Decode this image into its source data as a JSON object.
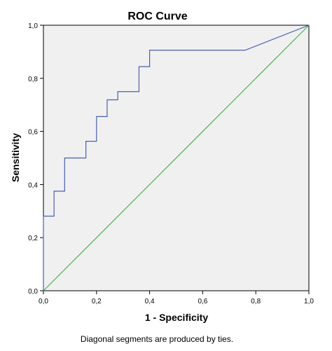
{
  "chart_data": {
    "type": "line",
    "title": "ROC Curve",
    "xlabel": "1 - Specificity",
    "ylabel": "Sensitivity",
    "footnote": "Diagonal segments are produced by ties.",
    "xlim": [
      0,
      1
    ],
    "ylim": [
      0,
      1
    ],
    "x_ticks": [
      "0,0",
      "0,2",
      "0,4",
      "0,6",
      "0,8",
      "1,0"
    ],
    "y_ticks": [
      "0,0",
      "0,2",
      "0,4",
      "0,6",
      "0,8",
      "1,0"
    ],
    "grid": false,
    "legend": "none",
    "series": [
      {
        "color": "#4a5fb0",
        "x": [
          0,
          0,
          0.04,
          0.04,
          0.08,
          0.08,
          0.16,
          0.16,
          0.2,
          0.2,
          0.24,
          0.24,
          0.28,
          0.28,
          0.36,
          0.36,
          0.4,
          0.4,
          0.76,
          1.0
        ],
        "y": [
          0,
          0.281,
          0.281,
          0.375,
          0.375,
          0.5,
          0.5,
          0.563,
          0.563,
          0.656,
          0.656,
          0.719,
          0.719,
          0.75,
          0.75,
          0.844,
          0.844,
          0.906,
          0.906,
          1.0
        ]
      },
      {
        "color": "#3dbb4a",
        "x": [
          0,
          1
        ],
        "y": [
          0,
          1
        ]
      }
    ],
    "plot_background": "#f0f0f0"
  }
}
